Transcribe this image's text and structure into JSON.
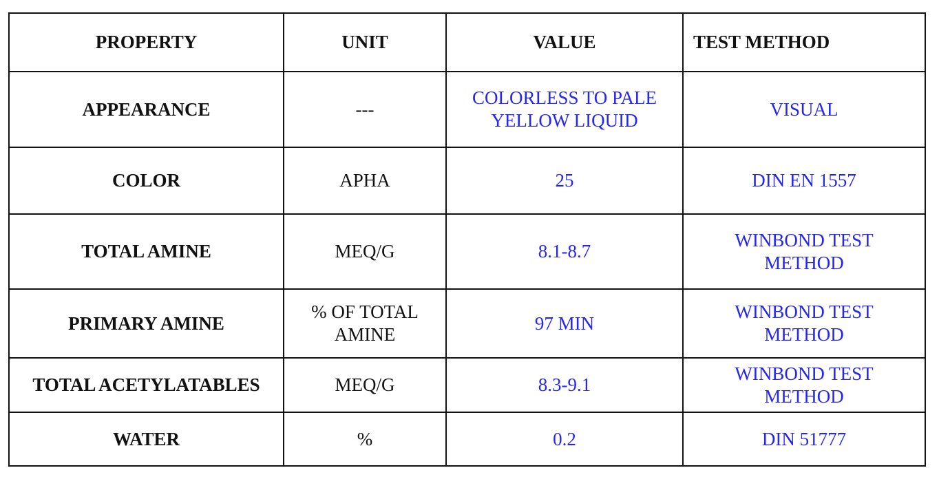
{
  "table": {
    "header": [
      "PROPERTY",
      "UNIT",
      "VALUE",
      "TEST METHOD"
    ],
    "rows": [
      [
        "APPEARANCE",
        "---",
        [
          "COLORLESS TO PALE",
          "YELLOW LIQUID"
        ],
        "VISUAL"
      ],
      [
        "COLOR",
        "APHA",
        "25",
        "DIN EN 1557"
      ],
      [
        "TOTAL AMINE",
        "MEQ/G",
        "8.1-8.7",
        [
          "WINBOND TEST",
          "METHOD"
        ]
      ],
      [
        "PRIMARY AMINE",
        [
          "% OF TOTAL",
          "AMINE"
        ],
        "97 MIN",
        [
          "WINBOND TEST",
          "METHOD"
        ]
      ],
      [
        "TOTAL ACETYLATABLES",
        "MEQ/G",
        "8.3-9.1",
        [
          "WINBOND TEST",
          "METHOD"
        ]
      ],
      [
        "WATER",
        "%",
        "0.2",
        "DIN 51777"
      ]
    ]
  }
}
